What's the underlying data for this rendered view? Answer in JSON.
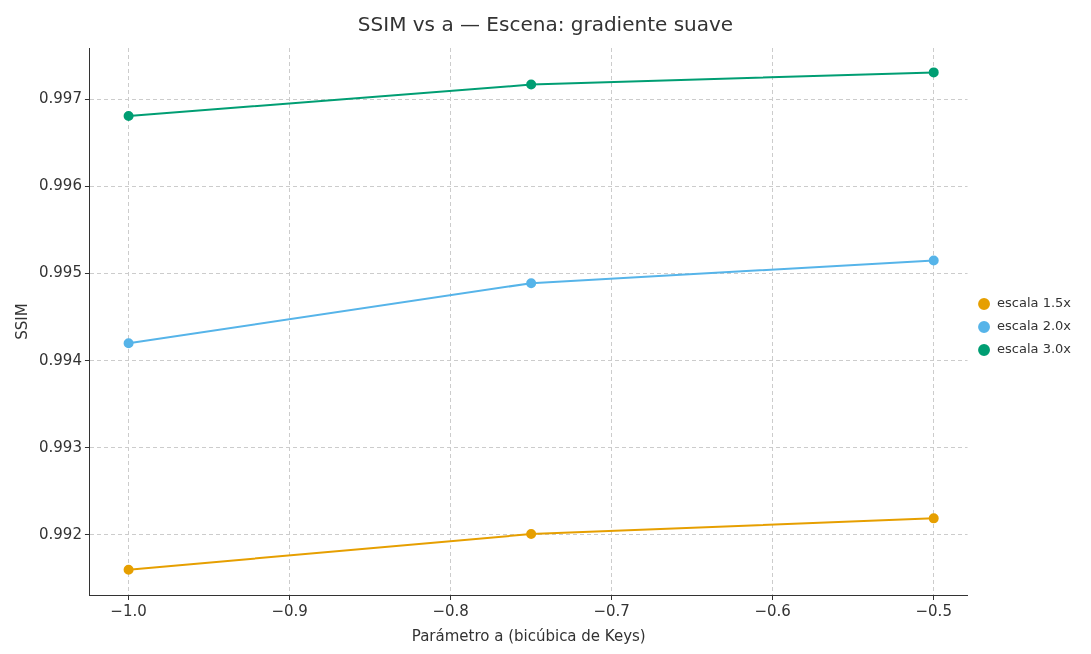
{
  "chart_data": {
    "type": "line",
    "title": "SSIM vs a — Escena: gradiente suave",
    "xlabel": "Parámetro a (bicúbica de Keys)",
    "ylabel": "SSIM",
    "x": [
      -1.0,
      -0.75,
      -0.5
    ],
    "series": [
      {
        "name": "escala 1.5x",
        "color": "#e69f00",
        "values": [
          0.9916,
          0.99201,
          0.99219
        ]
      },
      {
        "name": "escala 2.0x",
        "color": "#56b4e9",
        "values": [
          0.9942,
          0.99489,
          0.99515
        ]
      },
      {
        "name": "escala 3.0x",
        "color": "#009e73",
        "values": [
          0.99681,
          0.99717,
          0.99731
        ]
      }
    ],
    "xlim": [
      -1.024,
      -0.479
    ],
    "xticks": [
      {
        "value": -1.0,
        "label": "−1.0"
      },
      {
        "value": -0.9,
        "label": "−0.9"
      },
      {
        "value": -0.8,
        "label": "−0.8"
      },
      {
        "value": -0.7,
        "label": "−0.7"
      },
      {
        "value": -0.6,
        "label": "−0.6"
      },
      {
        "value": -0.5,
        "label": "−0.5"
      }
    ],
    "ylim": [
      0.99131,
      0.99759
    ],
    "yticks": [
      0.992,
      0.993,
      0.994,
      0.995,
      0.996,
      0.997
    ],
    "grid": true,
    "legend": "right",
    "marker": "circle",
    "line_style": "solid"
  }
}
